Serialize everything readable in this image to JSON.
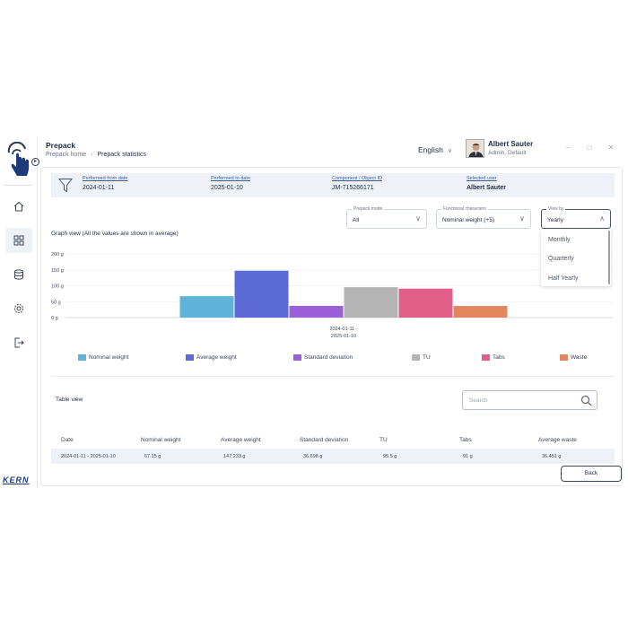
{
  "header": {
    "title": "Prepack",
    "breadcrumb": [
      "Prepack home",
      "Prepack statistics"
    ],
    "language": "English",
    "user_name": "Albert Sauter",
    "user_role": "Admin, Default"
  },
  "sidebar": {
    "brand": "KERN",
    "items": [
      {
        "icon": "home-icon"
      },
      {
        "icon": "grid-icon",
        "active": true
      },
      {
        "icon": "database-icon"
      },
      {
        "icon": "settings-icon"
      },
      {
        "icon": "logout-icon"
      }
    ]
  },
  "filters": {
    "performed_from": {
      "label": "Performed from date",
      "value": "2024-01-11"
    },
    "performed_to": {
      "label": "Performed to date",
      "value": "2025-01-10"
    },
    "component": {
      "label": "Component / Object ID",
      "value": "JM-715266171"
    },
    "selected_user": {
      "label": "Selected user",
      "value": "Albert Sauter"
    }
  },
  "dropdowns": {
    "prepack_mode": {
      "label": "Prepack mode",
      "value": "All"
    },
    "functional_characters": {
      "label": "Functional characters",
      "value": "Nominal weight (+5)"
    },
    "view_by": {
      "label": "View by",
      "value": "Yearly",
      "options": [
        "Monthly",
        "Quarterly",
        "Half Yearly"
      ]
    }
  },
  "graph": {
    "title": "Graph view (All the values are shown in average)"
  },
  "chart_data": {
    "type": "bar",
    "categories": [
      "2024-01-11 - 2025-01-10"
    ],
    "category_lines": [
      "2024-01-11 -",
      "2025-01-10"
    ],
    "series": [
      {
        "name": "Nominal weight",
        "values": [
          67.15
        ],
        "color": "#5fb3d9"
      },
      {
        "name": "Average weight",
        "values": [
          147.233
        ],
        "color": "#5c6ad6"
      },
      {
        "name": "Standard deviation",
        "values": [
          36.698
        ],
        "color": "#9b5fd9"
      },
      {
        "name": "TU",
        "values": [
          95.5
        ],
        "color": "#b4b4b4"
      },
      {
        "name": "Tabs",
        "values": [
          91
        ],
        "color": "#e0608a"
      },
      {
        "name": "Waste",
        "values": [
          36.451
        ],
        "color": "#e0875f"
      }
    ],
    "yticks": [
      "200 g",
      "150 g",
      "100 g",
      "50 g",
      "0 g"
    ],
    "ylim": [
      0,
      200
    ],
    "grid": true,
    "legend": "bottom"
  },
  "table": {
    "title": "Table view",
    "search_placeholder": "Search",
    "columns": [
      "Date",
      "Nominal weight",
      "Average weight",
      "Standard deviation",
      "TU",
      "Tabs",
      "Average waste"
    ],
    "rows": [
      [
        "2024-01-11 - 2025-01-10",
        "67.15 g",
        "147.233 g",
        "36.698 g",
        "95.5 g",
        "91 g",
        "36.451 g"
      ]
    ]
  },
  "back_label": "Back"
}
